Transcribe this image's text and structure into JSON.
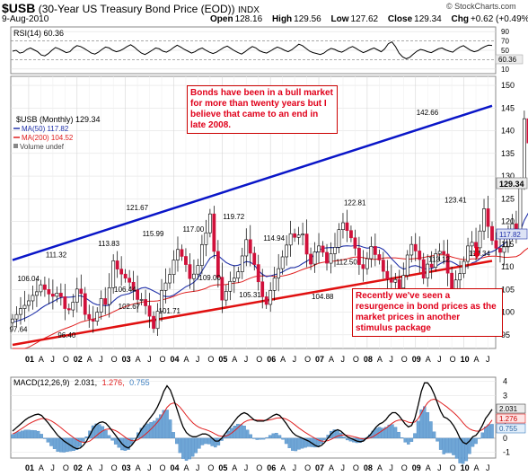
{
  "header": {
    "symbol": "$USB",
    "description": "(30-Year US Treasury Bond Price (EOD))",
    "index": "INDX",
    "date": "9-Aug-2010",
    "open_label": "Open",
    "open": "128.16",
    "high_label": "High",
    "high": "129.56",
    "low_label": "Low",
    "low": "127.62",
    "close_label": "Close",
    "close": "129.34",
    "chg_label": "Chg",
    "chg": "+0.62 (+0.49%)",
    "brand": "© StockCharts.com"
  },
  "rsi": {
    "label": "RSI(14) 60.36",
    "badge": "60.36",
    "ticks": [
      "90",
      "70",
      "50",
      "30",
      "10"
    ],
    "tick_values": [
      90,
      70,
      50,
      30,
      10
    ],
    "levels": [
      70,
      30
    ],
    "values": [
      48,
      50,
      44,
      46,
      52,
      55,
      51,
      47,
      40,
      38,
      43,
      50,
      56,
      53,
      49,
      45,
      47,
      55,
      60,
      58,
      54,
      49,
      44,
      42,
      46,
      52,
      57,
      55,
      50,
      47,
      49,
      53,
      58,
      62,
      57,
      50,
      44,
      41,
      45,
      50,
      55,
      53,
      48,
      46,
      50,
      56,
      61,
      57,
      52,
      48,
      44,
      47,
      52,
      55,
      50,
      46,
      43,
      46,
      51,
      56,
      59,
      54,
      49,
      45,
      42,
      47,
      53,
      58,
      55,
      49,
      46,
      44,
      48,
      53,
      57,
      54,
      50,
      47,
      51,
      57,
      63,
      60,
      54,
      48,
      45,
      43,
      41,
      44,
      50,
      54,
      52,
      48,
      46,
      50,
      55,
      58,
      54,
      49,
      45,
      48,
      52,
      55,
      51,
      47,
      53,
      64,
      68,
      58,
      44,
      36,
      32,
      35,
      42,
      48,
      52,
      50,
      47,
      45,
      49,
      53,
      55,
      51,
      48,
      46,
      52,
      57,
      60,
      55,
      50,
      47,
      49,
      54,
      58,
      61,
      60.36
    ]
  },
  "legend": {
    "price": "$USB (Monthly) 129.34",
    "ma50": "MA(50) 117.82",
    "ma200": "MA(200) 104.52",
    "volume": "Volume undef"
  },
  "colors": {
    "up": "#ffffff",
    "down": "#d0103a",
    "candle_outline": "#000000",
    "ma50": "#2233aa",
    "ma200": "#e02020",
    "blue_channel": "#0a16c8",
    "red_channel": "#e01010",
    "macd": "#000000",
    "signal": "#e02020",
    "hist": "#6fa6d6",
    "annotation": "#e0001a"
  },
  "chart_data": [
    {
      "type": "line",
      "panel": "RSI",
      "title": "RSI(14) 60.36",
      "ylim": [
        0,
        100
      ],
      "yticks": [
        90,
        70,
        50,
        30,
        10
      ]
    },
    {
      "type": "candlestick",
      "panel": "price",
      "title": "$USB (Monthly) 129.34",
      "ylim": [
        92,
        152
      ],
      "yticks": [
        95,
        100,
        105,
        110,
        115,
        120,
        125,
        130,
        135,
        140,
        145,
        150
      ],
      "ytick_labels": [
        "95",
        "100",
        "105",
        "110",
        "115",
        "120",
        "125",
        "130",
        "135",
        "140",
        "145",
        "150"
      ],
      "last_close": "129.34",
      "ma50_badge": "117.82",
      "x_start": "2000-09",
      "x_end": "2010-08",
      "close_series": [
        98.5,
        99.5,
        100.8,
        101.5,
        102.5,
        103.7,
        104.5,
        106.04,
        105,
        104,
        103.5,
        104.2,
        103.4,
        100.8,
        100.5,
        102.2,
        105.1,
        104.1,
        99.5,
        98.5,
        98,
        100,
        103,
        101.7,
        105.4,
        111.32,
        109.5,
        108.4,
        107.5,
        106.6,
        104.9,
        102.8,
        102.8,
        101.4,
        99.1,
        96.4,
        100.2,
        104.8,
        106.44,
        108.3,
        111.5,
        113.83,
        112.3,
        110.5,
        107.4,
        108.4,
        110.3,
        114.9,
        117.5,
        121.67,
        113.4,
        107.7,
        102.67,
        104.6,
        106.8,
        107.5,
        108.9,
        112.4,
        115.99,
        113,
        110.5,
        106.7,
        103.4,
        101.71,
        104.8,
        107.5,
        109.6,
        112.2,
        114.8,
        117.3,
        116.5,
        117,
        117.24,
        112.8,
        110.6,
        113.3,
        114.6,
        113.2,
        110.8,
        112.9,
        114.3,
        118.2,
        119.72,
        118,
        116.4,
        114.1,
        110.5,
        109.6,
        111.8,
        114.5,
        112.7,
        111.5,
        109,
        107.3,
        106.6,
        107.2,
        105.31,
        108.1,
        112.6,
        114.94,
        113.5,
        111.6,
        107.5,
        110.6,
        109.9,
        112.9,
        113.4,
        112.8,
        108.6,
        104.88,
        107.1,
        108.5,
        111.2,
        114.6,
        115.4,
        114.2,
        117.9,
        122.81,
        118.9,
        115.8,
        114.1,
        113.2,
        114.4,
        117.7,
        119.5,
        117.7,
        128.6,
        142.66,
        137.3,
        130.5,
        127.8,
        126.8,
        119.4,
        120.5,
        117.6,
        123.41,
        120.8,
        119.5,
        115.8,
        113.12,
        114.4,
        118.3,
        120.5,
        117.9,
        114.34,
        118.4,
        117.4,
        120.6,
        124.9,
        126.8,
        128.7,
        129.34
      ],
      "price_labels": [
        {
          "text": "97.64",
          "value": 97.64
        },
        {
          "text": "106.04",
          "value": 106.04
        },
        {
          "text": "96.40",
          "value": 96.4
        },
        {
          "text": "111.32",
          "value": 111.32
        },
        {
          "text": "106.44",
          "value": 106.44
        },
        {
          "text": "113.83",
          "value": 113.83
        },
        {
          "text": "121.67",
          "value": 121.67
        },
        {
          "text": "102.67",
          "value": 102.67
        },
        {
          "text": "115.99",
          "value": 115.99
        },
        {
          "text": "101.71",
          "value": 101.71
        },
        {
          "text": "117.00",
          "value": 117.0
        },
        {
          "text": "119.72",
          "value": 119.72
        },
        {
          "text": "109.00",
          "value": 109.0
        },
        {
          "text": "105.31",
          "value": 105.31
        },
        {
          "text": "114.94",
          "value": 114.94
        },
        {
          "text": "104.88",
          "value": 104.88
        },
        {
          "text": "112.50",
          "value": 112.5
        },
        {
          "text": "122.81",
          "value": 122.81
        },
        {
          "text": "142.66",
          "value": 142.66
        },
        {
          "text": "113.12",
          "value": 113.12
        },
        {
          "text": "123.41",
          "value": 123.41
        },
        {
          "text": "114.34",
          "value": 114.34
        }
      ],
      "trendlines": [
        {
          "color": "blue",
          "from": [
            "2000-09",
            111.5
          ],
          "to": [
            "2010-08",
            145.5
          ]
        },
        {
          "color": "red",
          "from": [
            "2000-09",
            92.8
          ],
          "to": [
            "2010-08",
            111.3
          ]
        }
      ]
    },
    {
      "type": "line",
      "panel": "MACD",
      "title": "MACD(12,26,9) 2.031, 1.276, 0.755",
      "ylim": [
        -1.4,
        4.3
      ],
      "yticks": [
        4,
        3,
        2,
        1,
        0,
        -1
      ],
      "badges": [
        "2.031",
        "1.276",
        "0.755"
      ],
      "macd": [
        0.5,
        0.7,
        0.9,
        1.1,
        1.3,
        1.45,
        1.55,
        1.65,
        1.7,
        1.6,
        1.35,
        1.1,
        0.8,
        0.5,
        0.2,
        0.0,
        -0.2,
        -0.35,
        -0.5,
        -0.65,
        -0.75,
        -0.7,
        -0.5,
        -0.2,
        0.2,
        0.65,
        0.95,
        1.1,
        1.15,
        1.05,
        0.8,
        0.5,
        0.2,
        -0.1,
        -0.4,
        -0.6,
        -0.7,
        -0.5,
        -0.2,
        0.2,
        0.6,
        0.9,
        1.2,
        1.5,
        1.8,
        2.2,
        2.7,
        3.3,
        3.7,
        3.4,
        2.8,
        2.1,
        1.4,
        0.8,
        0.4,
        0.2,
        0.1,
        0.1,
        0.2,
        0.3,
        0.3,
        0.2,
        0.0,
        -0.2,
        -0.2,
        0.0,
        0.3,
        0.6,
        0.9,
        1.2,
        1.5,
        1.7,
        1.8,
        1.7,
        1.5,
        1.3,
        1.2,
        1.2,
        1.2,
        1.3,
        1.45,
        1.6,
        1.7,
        1.6,
        1.35,
        1.05,
        0.7,
        0.4,
        0.2,
        0.1,
        0.0,
        -0.1,
        -0.2,
        -0.35,
        -0.5,
        -0.6,
        -0.5,
        -0.3,
        0.0,
        0.3,
        0.5,
        0.6,
        0.5,
        0.3,
        0.1,
        0.0,
        -0.1,
        -0.2,
        -0.25,
        -0.2,
        0.0,
        0.2,
        0.5,
        0.8,
        1.0,
        1.1,
        1.3,
        1.6,
        1.8,
        1.8,
        1.6,
        1.3,
        1.0,
        0.8,
        0.9,
        1.4,
        2.3,
        3.3,
        3.9,
        3.9,
        3.6,
        3.1,
        2.5,
        1.9,
        1.5,
        1.4,
        1.2,
        0.9,
        0.5,
        0.0,
        -0.3,
        -0.4,
        -0.2,
        0.1,
        0.2,
        0.5,
        0.9,
        1.4,
        1.7,
        2.031
      ],
      "signal": [
        0.3,
        0.4,
        0.55,
        0.7,
        0.85,
        1.0,
        1.12,
        1.23,
        1.32,
        1.38,
        1.38,
        1.32,
        1.22,
        1.08,
        0.92,
        0.75,
        0.56,
        0.38,
        0.2,
        0.03,
        -0.12,
        -0.24,
        -0.29,
        -0.28,
        -0.2,
        -0.03,
        0.17,
        0.36,
        0.51,
        0.62,
        0.65,
        0.62,
        0.53,
        0.4,
        0.24,
        0.07,
        -0.08,
        -0.17,
        -0.18,
        -0.1,
        0.05,
        0.22,
        0.42,
        0.64,
        0.87,
        1.12,
        1.42,
        1.79,
        2.17,
        2.4,
        2.48,
        2.4,
        2.19,
        1.91,
        1.61,
        1.33,
        1.09,
        0.9,
        0.76,
        0.67,
        0.6,
        0.52,
        0.42,
        0.29,
        0.18,
        0.13,
        0.13,
        0.21,
        0.35,
        0.53,
        0.74,
        0.96,
        1.13,
        1.25,
        1.3,
        1.3,
        1.28,
        1.27,
        1.26,
        1.26,
        1.29,
        1.35,
        1.42,
        1.44,
        1.42,
        1.35,
        1.23,
        1.07,
        0.89,
        0.71,
        0.55,
        0.4,
        0.26,
        0.12,
        -0.01,
        -0.13,
        -0.2,
        -0.21,
        -0.17,
        -0.08,
        0.04,
        0.15,
        0.21,
        0.23,
        0.2,
        0.16,
        0.11,
        0.05,
        -0.01,
        -0.05,
        -0.04,
        0.01,
        0.11,
        0.25,
        0.4,
        0.55,
        0.7,
        0.88,
        1.06,
        1.2,
        1.27,
        1.27,
        1.22,
        1.13,
        1.09,
        1.14,
        1.37,
        1.75,
        2.18,
        2.5,
        2.7,
        2.75,
        2.67,
        2.52,
        2.36,
        2.2,
        2.0,
        1.81,
        1.6,
        1.35,
        1.08,
        0.83,
        0.65,
        0.56,
        0.5,
        0.5,
        0.6,
        0.78,
        0.96,
        1.276
      ]
    }
  ],
  "annotations": {
    "note1": "Bonds have been in a bull market for more than twenty years but I believe that came to an end in late 2008.",
    "note2": "Recently we've seen a resurgence in bond prices as the market prices in another stimulus package"
  },
  "macd_panel": {
    "label_prefix": "MACD(12,26,9)",
    "macd_value": "2.031,",
    "signal_value": "1.276,",
    "hist_value": "0.755",
    "ticks": [
      "4",
      "3",
      "2",
      "1",
      "0",
      "-1"
    ],
    "tick_values": [
      4,
      3,
      2,
      1,
      0,
      -1
    ]
  },
  "x_axis": {
    "labels": [
      "01",
      "A",
      "J",
      "O",
      "02",
      "A",
      "J",
      "O",
      "03",
      "A",
      "J",
      "O",
      "04",
      "A",
      "J",
      "O",
      "05",
      "A",
      "J",
      "O",
      "06",
      "A",
      "J",
      "O",
      "07",
      "A",
      "J",
      "O",
      "08",
      "A",
      "J",
      "O",
      "09",
      "A",
      "J",
      "O",
      "10",
      "A",
      "J"
    ],
    "offsets": [
      4,
      7,
      10,
      13,
      16,
      19,
      22,
      25,
      28,
      31,
      34,
      37,
      40,
      43,
      46,
      49,
      52,
      55,
      58,
      61,
      64,
      67,
      70,
      73,
      76,
      79,
      82,
      85,
      88,
      91,
      94,
      97,
      100,
      103,
      106,
      109,
      112,
      115,
      118
    ]
  }
}
